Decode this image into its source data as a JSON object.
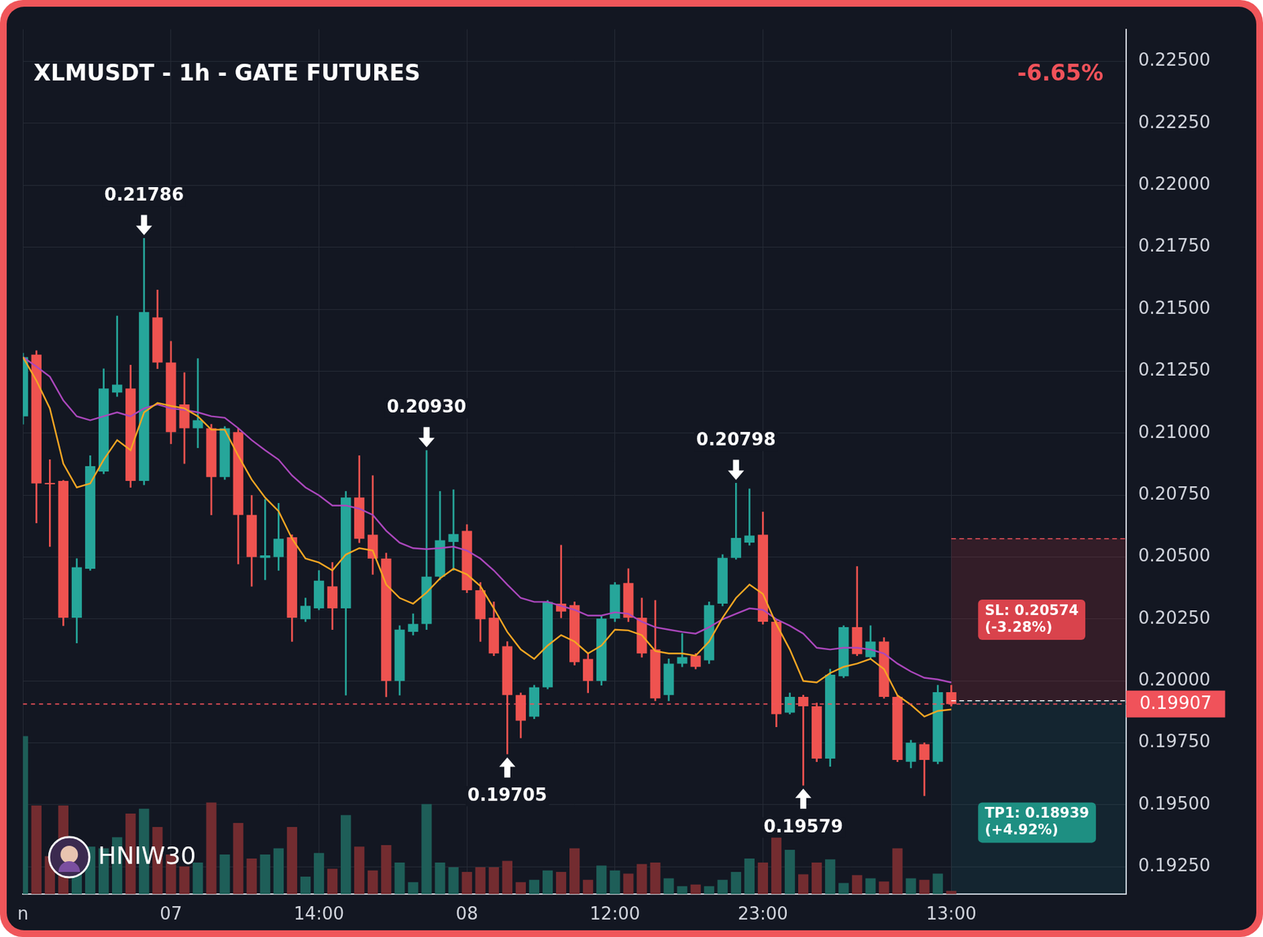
{
  "chart_data": {
    "type": "candlestick",
    "title": "XLMUSDT - 1h - GATE FUTURES",
    "change": "-6.65%",
    "watermark": "HNIW30",
    "categories": [
      "n",
      null,
      null,
      null,
      null,
      null,
      null,
      null,
      null,
      null,
      null,
      "07",
      null,
      null,
      null,
      null,
      null,
      null,
      null,
      null,
      null,
      null,
      "14:00",
      null,
      null,
      null,
      null,
      null,
      null,
      null,
      null,
      null,
      null,
      "08",
      null,
      null,
      null,
      null,
      null,
      null,
      null,
      null,
      null,
      null,
      "12:00",
      null,
      null,
      null,
      null,
      null,
      null,
      null,
      null,
      null,
      null,
      "23:00",
      null,
      null,
      null,
      null,
      null,
      null,
      null,
      null,
      null,
      null,
      null,
      null,
      null,
      "13:00",
      null,
      null,
      null,
      null,
      null,
      null,
      null,
      null,
      null,
      null,
      null,
      null,
      null
    ],
    "series": [
      {
        "type": "candlestick",
        "open": [
          0.21068,
          0.21317,
          0.20797,
          0.20807,
          0.20255,
          0.20453,
          0.20845,
          0.21164,
          0.2118,
          0.20807,
          0.21467,
          0.21285,
          0.21116,
          0.2102,
          0.2102,
          0.20823,
          0.21004,
          0.2067,
          0.20497,
          0.205,
          0.2058,
          0.20249,
          0.20293,
          0.20382,
          0.20293,
          0.2074,
          0.2059,
          0.20494,
          0.2,
          0.20198,
          0.2023,
          0.20421,
          0.20561,
          0.20606,
          0.20366,
          0.20255,
          0.2014,
          0.19943,
          0.19856,
          0.19974,
          0.20312,
          0.20306,
          0.20089,
          0.2,
          0.20252,
          0.20395,
          0.20255,
          0.20127,
          0.19943,
          0.2007,
          0.20102,
          0.20083,
          0.20312,
          0.20497,
          0.20558,
          0.2059,
          0.20239,
          0.19872,
          0.19936,
          0.19898,
          0.19687,
          0.20019,
          0.20217,
          0.20096,
          0.20159,
          0.19936,
          0.19674,
          0.19745,
          0.19674,
          0.19955,
          null,
          null,
          null,
          null,
          null,
          null,
          null,
          null,
          null,
          null,
          null,
          null,
          null
        ],
        "high": [
          0.21323,
          0.21333,
          0.20893,
          0.2081,
          0.20494,
          0.20909,
          0.2126,
          0.21473,
          0.21275,
          0.21786,
          0.21578,
          0.21371,
          0.21244,
          0.21301,
          0.21036,
          0.21027,
          0.2102,
          0.20749,
          0.20733,
          0.20717,
          0.2059,
          0.20335,
          0.20446,
          0.20478,
          0.20765,
          0.20909,
          0.20829,
          0.20516,
          0.20223,
          0.20271,
          0.2093,
          0.20765,
          0.20772,
          0.20631,
          0.20398,
          0.20319,
          0.20159,
          0.19952,
          0.19983,
          0.20325,
          0.20548,
          0.20319,
          0.20111,
          0.20261,
          0.20398,
          0.20453,
          0.20335,
          0.20325,
          0.20089,
          0.20191,
          0.20111,
          0.20319,
          0.2051,
          0.20798,
          0.20775,
          0.20682,
          0.20249,
          0.19952,
          0.19943,
          0.19911,
          0.20048,
          0.20223,
          0.20462,
          0.20223,
          0.20175,
          0.19943,
          0.19761,
          0.19751,
          0.19983,
          0.19983,
          null,
          null,
          null,
          null,
          null,
          null,
          null,
          null,
          null,
          null,
          null,
          null,
          null
        ],
        "low": [
          0.21036,
          0.20638,
          0.20542,
          0.20223,
          0.20153,
          0.20446,
          0.20836,
          0.21148,
          0.20781,
          0.20791,
          0.2126,
          0.20957,
          0.20877,
          0.20941,
          0.2067,
          0.20813,
          0.20472,
          0.20382,
          0.20408,
          0.20446,
          0.20159,
          0.20239,
          0.20287,
          0.20207,
          0.19943,
          0.20558,
          0.2043,
          0.19936,
          0.19943,
          0.20185,
          0.20207,
          0.20408,
          0.20446,
          0.20356,
          0.20159,
          0.20102,
          0.19705,
          0.1977,
          0.19847,
          0.19968,
          0.20255,
          0.20064,
          0.19952,
          0.19983,
          0.20239,
          0.20239,
          0.20096,
          0.1992,
          0.1992,
          0.20057,
          0.20048,
          0.2007,
          0.20303,
          0.20491,
          0.20548,
          0.20229,
          0.19815,
          0.19866,
          0.19579,
          0.19674,
          0.19655,
          0.20013,
          0.20102,
          0.20089,
          0.1993,
          0.19674,
          0.19649,
          0.19537,
          0.19665,
          0.19898,
          null,
          null,
          null,
          null,
          null,
          null,
          null,
          null,
          null,
          null,
          null,
          null,
          null
        ],
        "close": [
          0.21307,
          0.20797,
          0.20794,
          0.20255,
          0.20459,
          0.20867,
          0.2118,
          0.21196,
          0.20807,
          0.21489,
          0.21285,
          0.21004,
          0.2102,
          0.21052,
          0.20823,
          0.2102,
          0.2067,
          0.205,
          0.20507,
          0.20574,
          0.20255,
          0.20303,
          0.20405,
          0.20293,
          0.2074,
          0.20574,
          0.20494,
          0.2,
          0.20207,
          0.2023,
          0.20421,
          0.20568,
          0.20593,
          0.20366,
          0.20249,
          0.20111,
          0.19943,
          0.1984,
          0.19974,
          0.20319,
          0.2028,
          0.20076,
          0.2,
          0.20252,
          0.20389,
          0.20255,
          0.20111,
          0.1993,
          0.2007,
          0.20096,
          0.20057,
          0.20306,
          0.20497,
          0.20577,
          0.20587,
          0.20239,
          0.19866,
          0.19936,
          0.19898,
          0.19687,
          0.20025,
          0.20217,
          0.20108,
          0.20159,
          0.19936,
          0.19681,
          0.19751,
          0.19681,
          0.19955,
          0.19907,
          null,
          null,
          null,
          null,
          null,
          null,
          null,
          null,
          null,
          null,
          null,
          null,
          null
        ],
        "colors": [
          "#26a69a",
          "#ef5350",
          "#ef5350",
          "#ef5350",
          "#26a69a",
          "#26a69a",
          "#26a69a",
          "#26a69a",
          "#ef5350",
          "#26a69a",
          "#ef5350",
          "#ef5350",
          "#ef5350",
          "#26a69a",
          "#ef5350",
          "#26a69a",
          "#ef5350",
          "#ef5350",
          "#26a69a",
          "#26a69a",
          "#ef5350",
          "#26a69a",
          "#26a69a",
          "#ef5350",
          "#26a69a",
          "#ef5350",
          "#ef5350",
          "#ef5350",
          "#26a69a",
          "#26a69a",
          "#26a69a",
          "#26a69a",
          "#26a69a",
          "#ef5350",
          "#ef5350",
          "#ef5350",
          "#ef5350",
          "#ef5350",
          "#26a69a",
          "#26a69a",
          "#ef5350",
          "#ef5350",
          "#ef5350",
          "#26a69a",
          "#26a69a",
          "#ef5350",
          "#ef5350",
          "#ef5350",
          "#26a69a",
          "#26a69a",
          "#ef5350",
          "#26a69a",
          "#26a69a",
          "#26a69a",
          "#26a69a",
          "#ef5350",
          "#ef5350",
          "#26a69a",
          "#ef5350",
          "#ef5350",
          "#26a69a",
          "#26a69a",
          "#ef5350",
          "#26a69a",
          "#ef5350",
          "#ef5350",
          "#26a69a",
          "#ef5350",
          "#26a69a",
          "#ef5350",
          null,
          null,
          null,
          null,
          null,
          null,
          null,
          null,
          null,
          null,
          null,
          null,
          null
        ]
      },
      {
        "type": "line",
        "color": "#f5a623",
        "values": [
          0.21307,
          0.21212,
          0.211,
          0.20877,
          0.20781,
          0.20797,
          0.20893,
          0.20972,
          0.20931,
          0.21084,
          0.21122,
          0.2111,
          0.211,
          0.21068,
          0.21014,
          0.21014,
          0.20909,
          0.20813,
          0.2074,
          0.20685,
          0.20574,
          0.20494,
          0.20478,
          0.20446,
          0.2051,
          0.20536,
          0.20526,
          0.20389,
          0.20335,
          0.20312,
          0.20357,
          0.20414,
          0.20453,
          0.2043,
          0.20383,
          0.20293,
          0.20198,
          0.20127,
          0.20089,
          0.20143,
          0.20185,
          0.20159,
          0.20111,
          0.20143,
          0.20207,
          0.20204,
          0.20185,
          0.20121,
          0.20111,
          0.20111,
          0.20102,
          0.20159,
          0.20255,
          0.20335,
          0.20389,
          0.20351,
          0.20229,
          0.20127,
          0.2,
          0.19994,
          0.20032,
          0.20057,
          0.2007,
          0.20089,
          0.20048,
          0.19942,
          0.19904,
          0.19856,
          0.19879,
          0.19885,
          null,
          null,
          null,
          null,
          null,
          null,
          null,
          null,
          null,
          null,
          null,
          null,
          null
        ]
      },
      {
        "type": "line",
        "color": "#ab47bc",
        "values": [
          0.21307,
          0.21269,
          0.21228,
          0.21132,
          0.21068,
          0.21052,
          0.21068,
          0.21084,
          0.21068,
          0.211,
          0.21116,
          0.211,
          0.21094,
          0.21084,
          0.21068,
          0.21062,
          0.2102,
          0.20972,
          0.20931,
          0.20893,
          0.20829,
          0.20781,
          0.20749,
          0.20708,
          0.20708,
          0.20695,
          0.2067,
          0.20606,
          0.20558,
          0.20536,
          0.20532,
          0.20536,
          0.20542,
          0.20526,
          0.20494,
          0.20446,
          0.20389,
          0.20335,
          0.20319,
          0.20319,
          0.20303,
          0.20287,
          0.20264,
          0.20264,
          0.20277,
          0.20271,
          0.20239,
          0.20217,
          0.20207,
          0.20198,
          0.20191,
          0.20217,
          0.20249,
          0.20271,
          0.20293,
          0.20287,
          0.20249,
          0.20223,
          0.20191,
          0.20134,
          0.20127,
          0.20134,
          0.20134,
          0.20127,
          0.20111,
          0.2007,
          0.20038,
          0.20013,
          0.20006,
          0.19994,
          null,
          null,
          null,
          null,
          null,
          null,
          null,
          null,
          null,
          null,
          null,
          null,
          null
        ]
      },
      {
        "type": "bar",
        "axis": "y2",
        "values": [
          200,
          112,
          48,
          112,
          48,
          60,
          58,
          72,
          102,
          108,
          85,
          50,
          35,
          40,
          116,
          50,
          90,
          45,
          50,
          58,
          85,
          22,
          52,
          32,
          100,
          60,
          30,
          62,
          40,
          15,
          114,
          40,
          34,
          28,
          34,
          34,
          42,
          15,
          18,
          30,
          28,
          58,
          18,
          36,
          30,
          26,
          38,
          40,
          20,
          10,
          12,
          10,
          18,
          28,
          45,
          40,
          75,
          56,
          25,
          40,
          44,
          14,
          24,
          20,
          16,
          58,
          20,
          18,
          26,
          4,
          null,
          null,
          null,
          null,
          null,
          null,
          null,
          null,
          null,
          null,
          null,
          null,
          null
        ],
        "colors": [
          "#1e5e58",
          "#732c30",
          "#732c30",
          "#732c30",
          "#1e5e58",
          "#1e5e58",
          "#1e5e58",
          "#1e5e58",
          "#732c30",
          "#1e5e58",
          "#732c30",
          "#732c30",
          "#732c30",
          "#1e5e58",
          "#732c30",
          "#1e5e58",
          "#732c30",
          "#732c30",
          "#1e5e58",
          "#1e5e58",
          "#732c30",
          "#1e5e58",
          "#1e5e58",
          "#732c30",
          "#1e5e58",
          "#732c30",
          "#732c30",
          "#732c30",
          "#1e5e58",
          "#1e5e58",
          "#1e5e58",
          "#1e5e58",
          "#1e5e58",
          "#732c30",
          "#732c30",
          "#732c30",
          "#732c30",
          "#732c30",
          "#1e5e58",
          "#1e5e58",
          "#732c30",
          "#732c30",
          "#732c30",
          "#1e5e58",
          "#1e5e58",
          "#732c30",
          "#732c30",
          "#732c30",
          "#1e5e58",
          "#1e5e58",
          "#732c30",
          "#1e5e58",
          "#1e5e58",
          "#1e5e58",
          "#1e5e58",
          "#732c30",
          "#732c30",
          "#1e5e58",
          "#732c30",
          "#732c30",
          "#1e5e58",
          "#1e5e58",
          "#732c30",
          "#1e5e58",
          "#732c30",
          "#732c30",
          "#1e5e58",
          "#732c30",
          "#1e5e58",
          "#732c30",
          null,
          null,
          null,
          null,
          null,
          null,
          null,
          null,
          null,
          null,
          null,
          null,
          null
        ]
      }
    ],
    "ylim": [
      0.1914,
      0.2263
    ],
    "yticks": [
      {
        "value": 0.1925,
        "label": "0.19250"
      },
      {
        "value": 0.195,
        "label": "0.19500"
      },
      {
        "value": 0.1975,
        "label": "0.19750"
      },
      {
        "value": 0.2,
        "label": "0.20000"
      },
      {
        "value": 0.2025,
        "label": "0.20250"
      },
      {
        "value": 0.205,
        "label": "0.20500"
      },
      {
        "value": 0.2075,
        "label": "0.20750"
      },
      {
        "value": 0.21,
        "label": "0.21000"
      },
      {
        "value": 0.2125,
        "label": "0.21250"
      },
      {
        "value": 0.215,
        "label": "0.21500"
      },
      {
        "value": 0.2175,
        "label": "0.21750"
      },
      {
        "value": 0.22,
        "label": "0.22000"
      },
      {
        "value": 0.2225,
        "label": "0.22250"
      },
      {
        "value": 0.225,
        "label": "0.22500"
      }
    ],
    "y2lim": [
      0,
      1095
    ],
    "y2ticks": [],
    "grid": true,
    "annotations": [
      {
        "index": 9,
        "value": 0.21786,
        "label": "0.21786",
        "marker": "arrow_down"
      },
      {
        "index": 30,
        "value": 0.2093,
        "label": "0.20930",
        "marker": "arrow_down"
      },
      {
        "index": 36,
        "value": 0.19705,
        "label": "0.19705",
        "marker": "arrow_up"
      },
      {
        "index": 53,
        "value": 0.20798,
        "label": "0.20798",
        "marker": "arrow_down"
      },
      {
        "index": 58,
        "value": 0.19579,
        "label": "0.19579",
        "marker": "arrow_up"
      }
    ],
    "trade": {
      "start_index": 69,
      "entry": 0.1992,
      "stop_loss": 0.20574,
      "stop_loss_label": "SL: 0.20574",
      "stop_loss_change": "(-3.28%)",
      "take_profit": 0.18939,
      "take_profit_label": "TP1: 0.18939",
      "take_profit_change": "(+4.92%)"
    },
    "last_price": {
      "value": 0.19907,
      "label": "0.19907"
    }
  }
}
